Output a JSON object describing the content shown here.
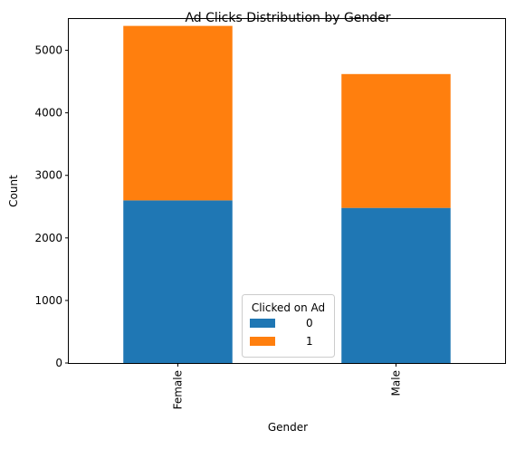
{
  "chart_data": {
    "type": "bar",
    "stacked": true,
    "title": "Ad Clicks Distribution by Gender",
    "xlabel": "Gender",
    "ylabel": "Count",
    "categories": [
      "Female",
      "Male"
    ],
    "ylim": [
      0,
      5500
    ],
    "yticks": [
      0,
      1000,
      2000,
      3000,
      4000,
      5000
    ],
    "ytick_labels": [
      "0",
      "1000",
      "2000",
      "3000",
      "4000",
      "5000"
    ],
    "grid": false,
    "legend": {
      "title": "Clicked on Ad",
      "placement": "lower center"
    },
    "series": [
      {
        "name": "0",
        "values": [
          2600,
          2480
        ],
        "color": "#1f77b4"
      },
      {
        "name": "1",
        "values": [
          2790,
          2140
        ],
        "color": "#ff7f0e"
      }
    ]
  }
}
